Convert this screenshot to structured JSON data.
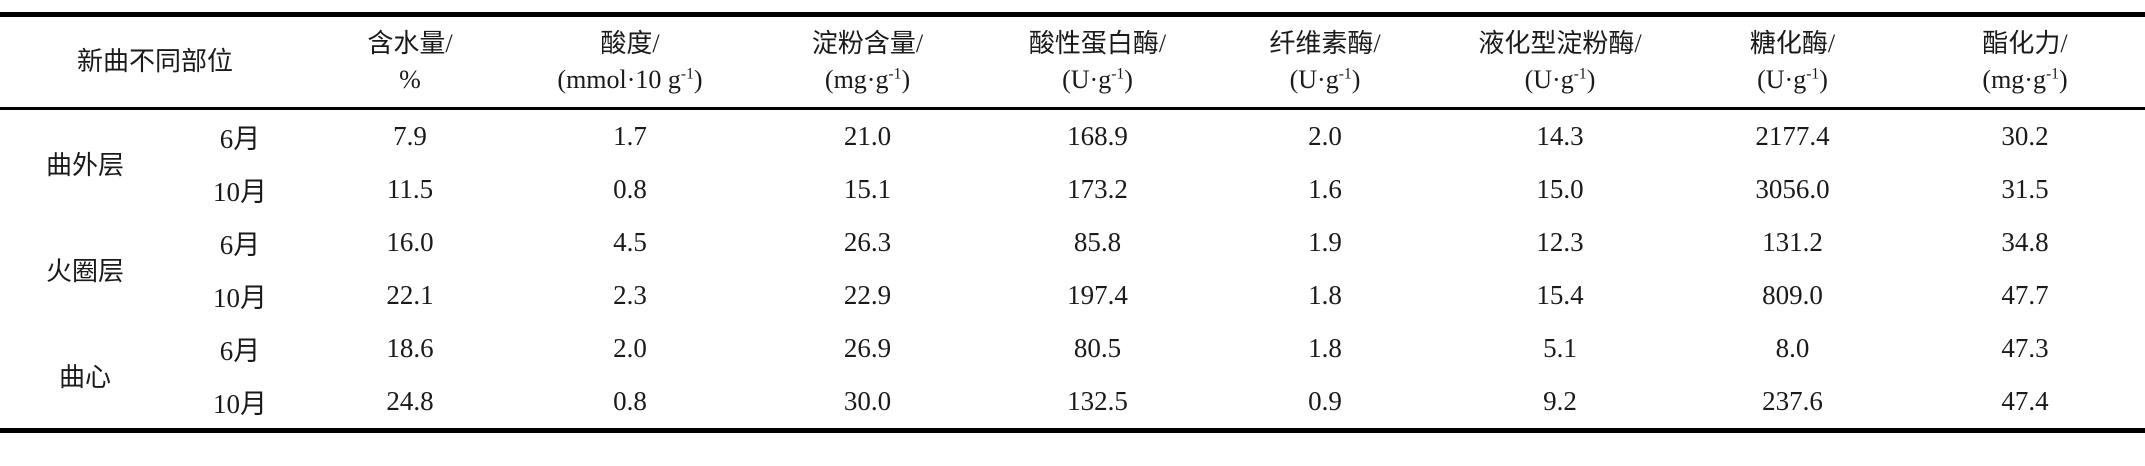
{
  "table": {
    "header": {
      "part_label": "新曲不同部位",
      "columns": [
        {
          "name": "含水量/",
          "unit": [
            "%",
            "",
            ""
          ]
        },
        {
          "name": "酸度/",
          "unit": [
            "(mmol·10 g",
            "-1",
            ")"
          ]
        },
        {
          "name": "淀粉含量/",
          "unit": [
            "(mg·g",
            "-1",
            ")"
          ]
        },
        {
          "name": "酸性蛋白酶/",
          "unit": [
            "(U·g",
            "-1",
            ")"
          ]
        },
        {
          "name": "纤维素酶/",
          "unit": [
            "(U·g",
            "-1",
            ")"
          ]
        },
        {
          "name": "液化型淀粉酶/",
          "unit": [
            "(U·g",
            "-1",
            ")"
          ]
        },
        {
          "name": "糖化酶/",
          "unit": [
            "(U·g",
            "-1",
            ")"
          ]
        },
        {
          "name": "酯化力/",
          "unit": [
            "(mg·g",
            "-1",
            ")"
          ]
        }
      ]
    },
    "groups": [
      {
        "part": "曲外层",
        "rows": [
          {
            "month": "6月",
            "values": [
              "7.9",
              "1.7",
              "21.0",
              "168.9",
              "2.0",
              "14.3",
              "2177.4",
              "30.2"
            ]
          },
          {
            "month": "10月",
            "values": [
              "11.5",
              "0.8",
              "15.1",
              "173.2",
              "1.6",
              "15.0",
              "3056.0",
              "31.5"
            ]
          }
        ]
      },
      {
        "part": "火圈层",
        "rows": [
          {
            "month": "6月",
            "values": [
              "16.0",
              "4.5",
              "26.3",
              "85.8",
              "1.9",
              "12.3",
              "131.2",
              "34.8"
            ]
          },
          {
            "month": "10月",
            "values": [
              "22.1",
              "2.3",
              "22.9",
              "197.4",
              "1.8",
              "15.4",
              "809.0",
              "47.7"
            ]
          }
        ]
      },
      {
        "part": "曲心",
        "rows": [
          {
            "month": "6月",
            "values": [
              "18.6",
              "2.0",
              "26.9",
              "80.5",
              "1.8",
              "5.1",
              "8.0",
              "47.3"
            ]
          },
          {
            "month": "10月",
            "values": [
              "24.8",
              "0.8",
              "30.0",
              "132.5",
              "0.9",
              "9.2",
              "237.6",
              "47.4"
            ]
          }
        ]
      }
    ]
  }
}
